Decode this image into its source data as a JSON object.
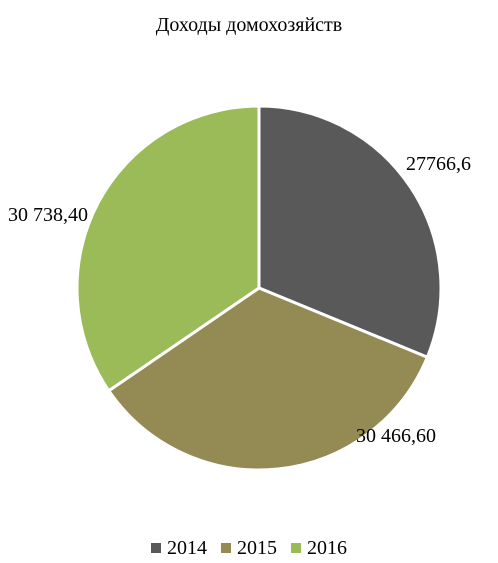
{
  "chart_data": {
    "type": "pie",
    "title": "Доходы домохозяйств",
    "categories": [
      "2014",
      "2015",
      "2016"
    ],
    "values": [
      27766.6,
      30466.6,
      30738.4
    ],
    "data_labels": [
      "27766,6",
      "30 466,60",
      "30 738,40"
    ],
    "colors": [
      "#595959",
      "#948a54",
      "#9bbb59"
    ],
    "legend": "bottom",
    "start_angle_deg": 0,
    "direction": "clockwise"
  }
}
